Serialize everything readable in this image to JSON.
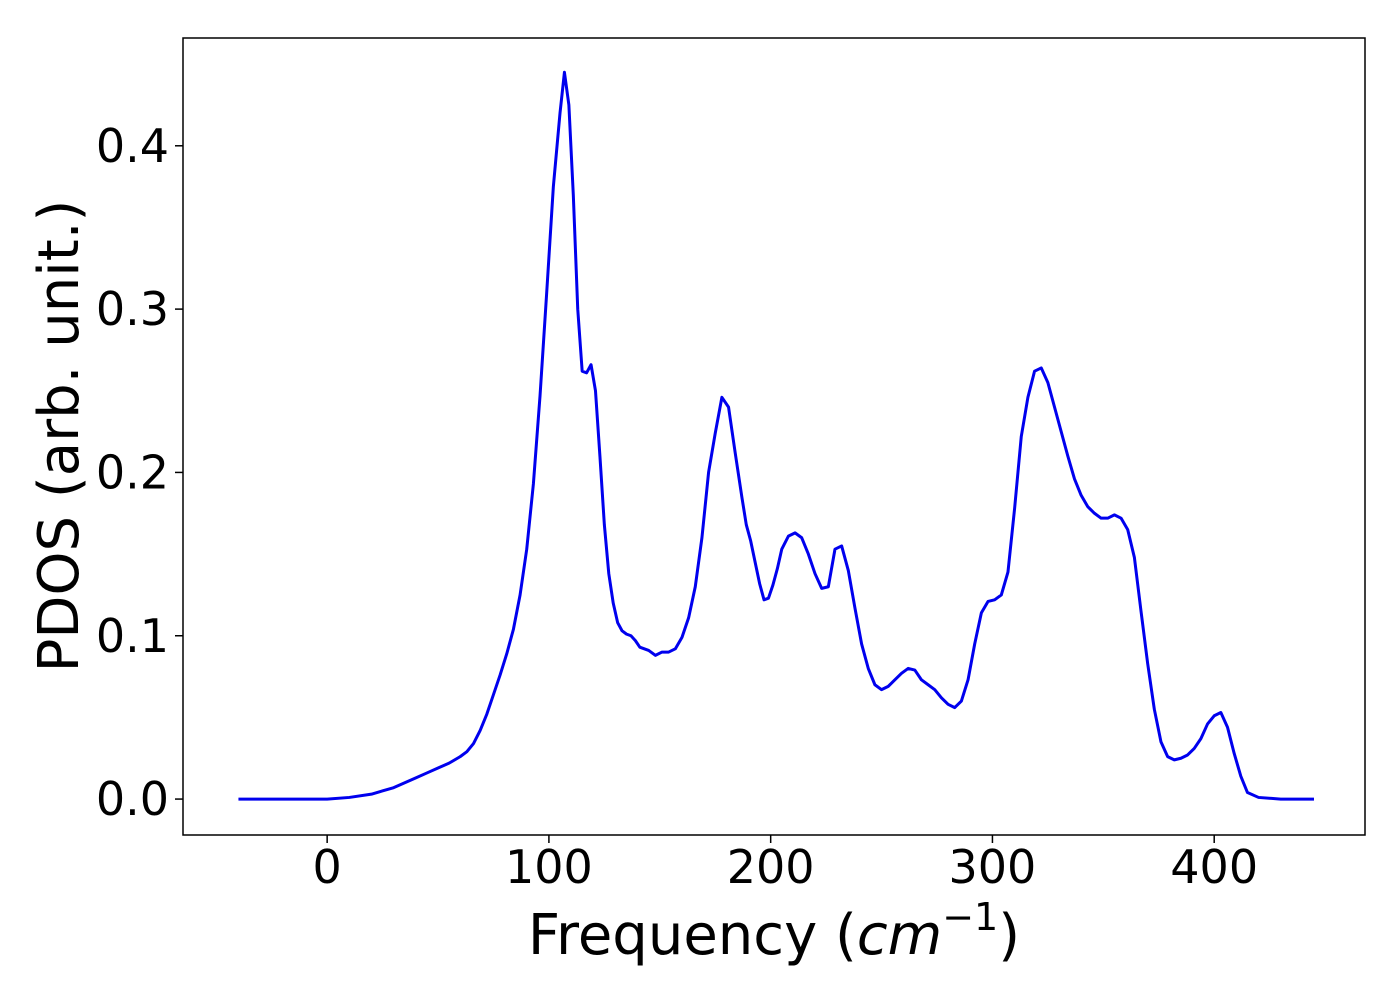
{
  "colors": {
    "series_line": "#0000ee",
    "axes": "#000000",
    "background": "#ffffff"
  },
  "chart_data": {
    "type": "line",
    "title": "",
    "xlabel": {
      "prefix": "Frequency (",
      "unit_base": "cm",
      "unit_exponent": "−1",
      "suffix": ")"
    },
    "ylabel": "PDOS (arb. unit.)",
    "xlim": [
      -65,
      468
    ],
    "ylim": [
      -0.022,
      0.466
    ],
    "xticks": [
      0,
      100,
      200,
      300,
      400
    ],
    "xtick_labels": [
      "0",
      "100",
      "200",
      "300",
      "400"
    ],
    "yticks": [
      0.0,
      0.1,
      0.2,
      0.3,
      0.4
    ],
    "ytick_labels": [
      "0.0",
      "0.1",
      "0.2",
      "0.3",
      "0.4"
    ],
    "grid": false,
    "legend": "none",
    "series": [
      {
        "color": "#0000ee",
        "x": [
          -40,
          -20,
          0,
          10,
          20,
          30,
          35,
          40,
          45,
          50,
          55,
          60,
          63,
          66,
          69,
          72,
          75,
          78,
          81,
          84,
          87,
          90,
          93,
          96,
          99,
          102,
          105,
          107,
          109,
          111,
          113,
          115,
          117,
          119,
          121,
          123,
          125,
          127,
          129,
          131,
          133,
          135,
          137,
          139,
          141,
          143,
          145,
          148,
          151,
          154,
          157,
          160,
          163,
          166,
          169,
          172,
          175,
          178,
          181,
          184,
          187,
          189,
          191,
          193,
          195,
          197,
          199,
          201,
          203,
          205,
          208,
          211,
          214,
          217,
          220,
          223,
          226,
          229,
          232,
          235,
          238,
          241,
          244,
          247,
          250,
          253,
          256,
          259,
          262,
          265,
          268,
          271,
          274,
          277,
          280,
          283,
          286,
          289,
          292,
          295,
          298,
          301,
          304,
          307,
          310,
          313,
          316,
          319,
          322,
          325,
          328,
          331,
          334,
          337,
          340,
          343,
          346,
          349,
          352,
          355,
          358,
          361,
          364,
          367,
          370,
          373,
          376,
          379,
          382,
          385,
          388,
          391,
          394,
          397,
          400,
          403,
          406,
          409,
          412,
          415,
          420,
          430,
          445
        ],
        "y": [
          0.0,
          0.0,
          0.0,
          0.001,
          0.003,
          0.007,
          0.01,
          0.013,
          0.016,
          0.019,
          0.022,
          0.026,
          0.029,
          0.034,
          0.042,
          0.052,
          0.064,
          0.076,
          0.089,
          0.104,
          0.125,
          0.153,
          0.193,
          0.247,
          0.31,
          0.375,
          0.42,
          0.445,
          0.425,
          0.37,
          0.3,
          0.262,
          0.261,
          0.266,
          0.25,
          0.21,
          0.168,
          0.138,
          0.12,
          0.108,
          0.103,
          0.101,
          0.1,
          0.097,
          0.093,
          0.092,
          0.091,
          0.088,
          0.09,
          0.09,
          0.092,
          0.099,
          0.111,
          0.13,
          0.16,
          0.2,
          0.224,
          0.246,
          0.24,
          0.212,
          0.185,
          0.168,
          0.158,
          0.145,
          0.132,
          0.122,
          0.123,
          0.131,
          0.141,
          0.153,
          0.161,
          0.163,
          0.16,
          0.15,
          0.138,
          0.129,
          0.13,
          0.153,
          0.155,
          0.14,
          0.117,
          0.095,
          0.08,
          0.07,
          0.067,
          0.069,
          0.073,
          0.077,
          0.08,
          0.079,
          0.073,
          0.07,
          0.067,
          0.062,
          0.058,
          0.056,
          0.06,
          0.073,
          0.095,
          0.114,
          0.121,
          0.122,
          0.125,
          0.139,
          0.178,
          0.222,
          0.246,
          0.262,
          0.264,
          0.255,
          0.24,
          0.225,
          0.21,
          0.196,
          0.186,
          0.179,
          0.175,
          0.172,
          0.172,
          0.174,
          0.172,
          0.165,
          0.148,
          0.115,
          0.083,
          0.055,
          0.035,
          0.026,
          0.024,
          0.025,
          0.027,
          0.031,
          0.037,
          0.046,
          0.051,
          0.053,
          0.044,
          0.028,
          0.014,
          0.004,
          0.001,
          0.0,
          0.0
        ]
      }
    ]
  }
}
